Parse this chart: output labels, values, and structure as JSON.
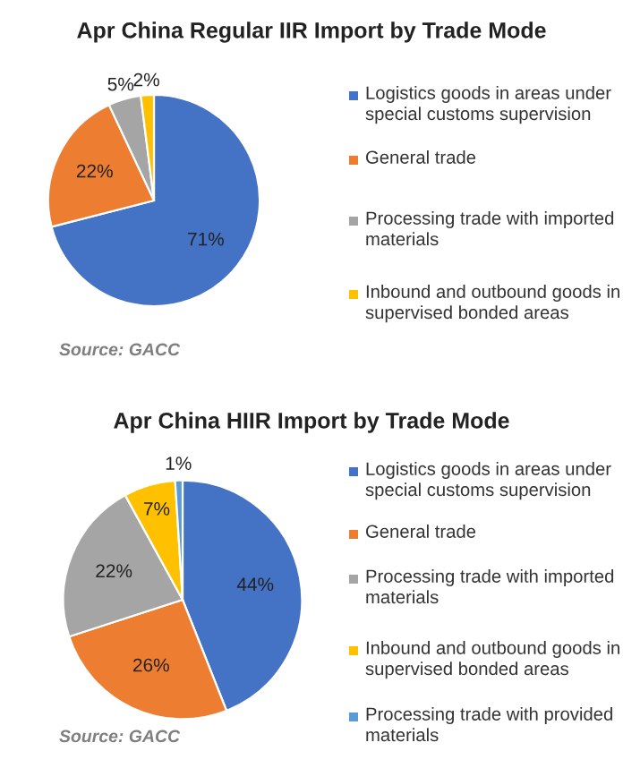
{
  "chart_data": [
    {
      "type": "pie",
      "title": "Apr China Regular IIR Import by Trade Mode",
      "categories": [
        "Logistics goods in areas under special customs supervision",
        "General trade",
        "Processing trade with imported materials",
        "Inbound and outbound goods in supervised bonded areas"
      ],
      "values": [
        71,
        22,
        5,
        2
      ],
      "colors": [
        "#4472c4",
        "#ed7d31",
        "#a5a5a5",
        "#ffc000"
      ],
      "value_labels": [
        "71%",
        "22%",
        "5%",
        "2%"
      ],
      "legend": "right",
      "annotations": [
        "Source: GACC"
      ]
    },
    {
      "type": "pie",
      "title": "Apr China HIIR Import by Trade Mode",
      "categories": [
        "Logistics goods in areas under special customs supervision",
        "General trade",
        "Processing trade with imported materials",
        "Inbound and outbound goods in supervised bonded areas",
        "Processing trade with provided materials"
      ],
      "values": [
        44,
        26,
        22,
        7,
        1
      ],
      "colors": [
        "#4472c4",
        "#ed7d31",
        "#a5a5a5",
        "#ffc000",
        "#5b9bd5"
      ],
      "value_labels": [
        "44%",
        "26%",
        "22%",
        "7%",
        "1%"
      ],
      "legend": "right",
      "annotations": [
        "Source: GACC"
      ]
    }
  ]
}
